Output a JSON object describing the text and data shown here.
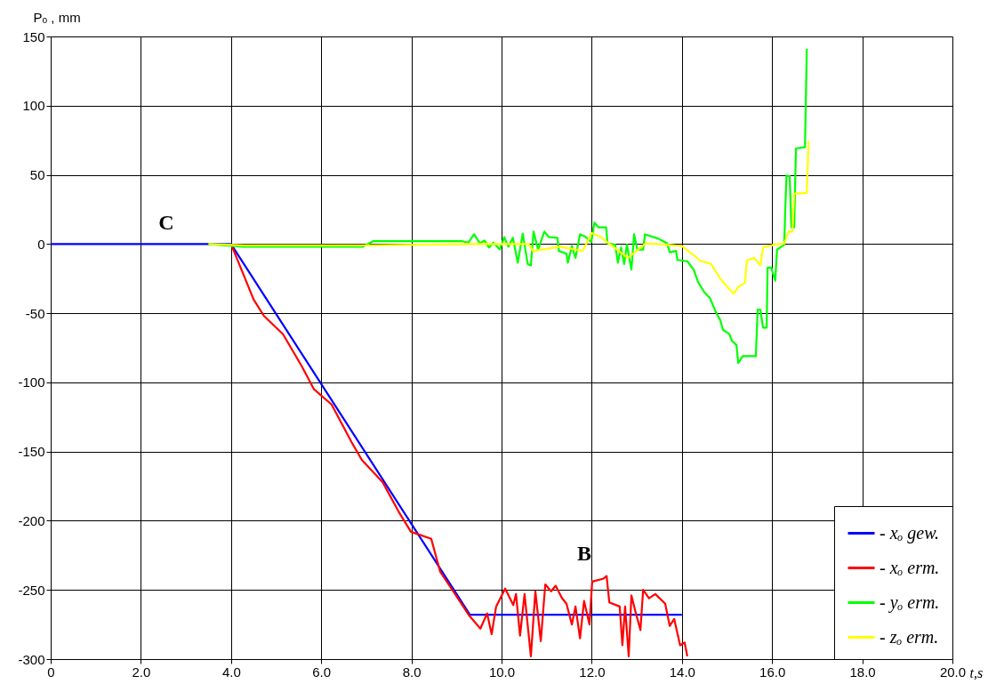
{
  "chart_data": {
    "type": "line",
    "xlabel": "t,s",
    "ylabel": "Pₒ , mm",
    "xlim": [
      0,
      20
    ],
    "xticks": [
      0,
      {
        "value": 2,
        "label": "2.0"
      },
      {
        "value": 4,
        "label": "4.0"
      },
      {
        "value": 6,
        "label": "6.0"
      },
      {
        "value": 8,
        "label": "8.0"
      },
      {
        "value": 10,
        "label": "10.0"
      },
      {
        "value": 12,
        "label": "12.0"
      },
      {
        "value": 14,
        "label": "14.0"
      },
      {
        "value": 16,
        "label": "16.0"
      },
      {
        "value": 18,
        "label": "18.0"
      },
      {
        "value": 20,
        "label": "20.0"
      }
    ],
    "ylim": [
      -300,
      150
    ],
    "yticks": [
      -300,
      -250,
      -200,
      -150,
      -100,
      -50,
      0,
      50,
      100,
      150
    ],
    "grid": true,
    "legend": "bottom right",
    "line_style": "solid",
    "marker": "none",
    "annotations": [
      "C",
      "B"
    ],
    "series": [
      {
        "name": "- xₒ gew.",
        "color": "#0000ff",
        "x": [
          0,
          4.0,
          9.3,
          14.0
        ],
        "values": [
          0,
          0,
          -268,
          -268
        ]
      },
      {
        "name": "- xₒ erm.",
        "color": "#ff0000",
        "x": [
          4.0,
          4.5,
          4.73,
          5.15,
          5.58,
          5.84,
          6.23,
          6.67,
          6.9,
          7.36,
          7.71,
          7.99,
          8.44,
          8.64,
          8.93,
          9.27,
          9.53,
          9.68,
          9.78,
          9.88,
          10.08,
          10.26,
          10.32,
          10.41,
          10.51,
          10.65,
          10.75,
          10.87,
          10.97,
          11.1,
          11.2,
          11.34,
          11.44,
          11.56,
          11.64,
          11.74,
          11.83,
          11.95,
          12.01,
          12.25,
          12.33,
          12.39,
          12.62,
          12.68,
          12.74,
          12.82,
          12.88,
          12.98,
          13.08,
          13.14,
          13.27,
          13.41,
          13.63,
          13.73,
          13.83,
          13.96,
          14.06,
          14.12
        ],
        "values": [
          0,
          -40,
          -52,
          -65,
          -89,
          -105,
          -116,
          -143,
          -156,
          -172,
          -193,
          -208,
          -213,
          -237,
          -251,
          -268,
          -278,
          -267,
          -282,
          -262,
          -249,
          -261,
          -253,
          -283,
          -253,
          -298,
          -251,
          -287,
          -246,
          -251,
          -247,
          -256,
          -260,
          -275,
          -262,
          -285,
          -258,
          -275,
          -244,
          -242,
          -240,
          -259,
          -262,
          -290,
          -262,
          -298,
          -254,
          -267,
          -279,
          -250,
          -256,
          -253,
          -260,
          -276,
          -271,
          -290,
          -288,
          -298
        ]
      },
      {
        "name": "- yₒ erm.",
        "color": "#00ff00",
        "x": [
          3.5,
          4.26,
          6.92,
          7.15,
          9.13,
          9.26,
          9.39,
          9.52,
          9.62,
          9.72,
          9.82,
          9.96,
          10.06,
          10.15,
          10.25,
          10.36,
          10.47,
          10.58,
          10.65,
          10.71,
          10.81,
          10.95,
          11.05,
          11.24,
          11.27,
          11.44,
          11.47,
          11.56,
          11.64,
          11.74,
          11.85,
          11.99,
          12.06,
          12.15,
          12.32,
          12.35,
          12.52,
          12.58,
          12.65,
          12.72,
          12.78,
          12.88,
          12.94,
          13.01,
          13.14,
          13.18,
          13.47,
          13.67,
          13.73,
          13.87,
          13.9,
          14.12,
          14.26,
          14.36,
          14.5,
          14.62,
          14.75,
          14.85,
          14.91,
          15.05,
          15.11,
          15.21,
          15.25,
          15.35,
          15.64,
          15.68,
          15.74,
          15.8,
          15.88,
          15.9,
          15.98,
          16.07,
          16.11,
          16.27,
          16.29,
          16.32,
          16.39,
          16.43,
          16.49,
          16.53,
          16.73,
          16.77
        ],
        "values": [
          0,
          -2,
          -2,
          2,
          2,
          1,
          7,
          0.5,
          2.5,
          -2.5,
          1,
          -4,
          5,
          -2,
          4.5,
          -13.5,
          7.5,
          -14.5,
          -15.5,
          9,
          -4,
          9,
          5,
          4.5,
          -5,
          -7,
          -13.5,
          -1.5,
          -10,
          7,
          5.5,
          1.5,
          15.5,
          12,
          12,
          0.5,
          -0.5,
          -13.5,
          -2.5,
          -14.5,
          -0.5,
          -18.5,
          7,
          -4,
          -4,
          7,
          4,
          0.5,
          -6,
          -5,
          -11.5,
          -12.5,
          -18.5,
          -27.5,
          -35,
          -39,
          -49,
          -55,
          -62,
          -65,
          -70,
          -73,
          -86,
          -81,
          -81,
          -47.5,
          -47.5,
          -60.5,
          -60.5,
          -17,
          -17,
          -26.5,
          -4,
          -0.5,
          23,
          49.5,
          49,
          12,
          12,
          69,
          70,
          141
        ]
      },
      {
        "name": "- zₒ erm.",
        "color": "#ffff00",
        "x": [
          3.5,
          4.3,
          7.0,
          9.4,
          10.6,
          10.7,
          11.3,
          11.8,
          12.0,
          12.2,
          12.8,
          13.2,
          13.67,
          14.0,
          14.26,
          14.4,
          14.65,
          14.85,
          15.02,
          15.15,
          15.25,
          15.4,
          15.44,
          15.6,
          15.74,
          15.8,
          16.04,
          16.27,
          16.37,
          16.45,
          16.49,
          16.77,
          16.81
        ],
        "values": [
          0,
          -1,
          -1,
          0,
          0,
          -5,
          -2,
          -5,
          8,
          5,
          -10,
          0.5,
          -0.5,
          -1.5,
          -8,
          -12,
          -14.5,
          -25,
          -31.5,
          -36,
          -31,
          -28,
          -12,
          -10,
          -15.5,
          -2.5,
          -0.5,
          0.5,
          9,
          9,
          36.5,
          37,
          74.5
        ]
      }
    ]
  }
}
